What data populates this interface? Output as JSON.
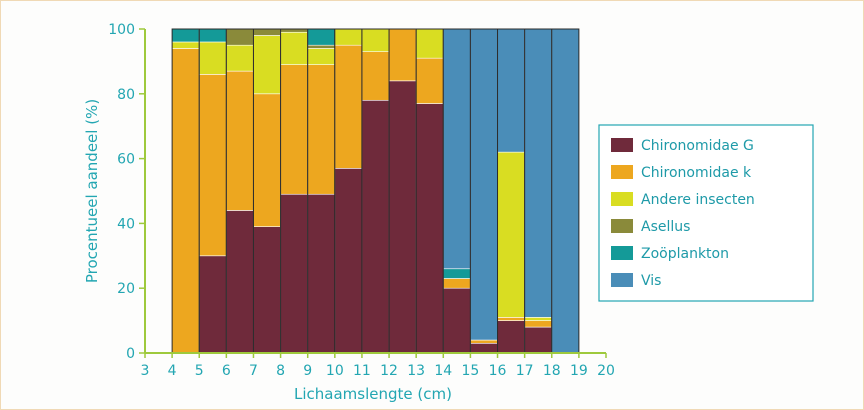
{
  "chart_data": {
    "type": "bar",
    "subtype": "stacked-100-percent",
    "xlabel": "Lichaamslengte (cm)",
    "ylabel": "Procentueel aandeel (%)",
    "xlim": [
      3,
      20
    ],
    "ylim": [
      0,
      100
    ],
    "x_ticks": [
      "3",
      "4",
      "5",
      "6",
      "7",
      "8",
      "9",
      "10",
      "11",
      "12",
      "13",
      "14",
      "15",
      "16",
      "17",
      "18",
      "19",
      "20"
    ],
    "y_ticks": [
      "0",
      "20",
      "40",
      "60",
      "80",
      "100"
    ],
    "grid": false,
    "legend_position": "right",
    "bins": [
      {
        "x0": 4,
        "x1": 5,
        "values": [
          0,
          94,
          2,
          0,
          4,
          0
        ]
      },
      {
        "x0": 5,
        "x1": 6,
        "values": [
          30,
          56,
          10,
          0,
          4,
          0
        ]
      },
      {
        "x0": 6,
        "x1": 7,
        "values": [
          44,
          43,
          8,
          5,
          0,
          0
        ]
      },
      {
        "x0": 7,
        "x1": 8,
        "values": [
          39,
          41,
          18,
          2,
          0,
          0
        ]
      },
      {
        "x0": 8,
        "x1": 9,
        "values": [
          49,
          40,
          10,
          1,
          0,
          0
        ]
      },
      {
        "x0": 9,
        "x1": 10,
        "values": [
          49,
          40,
          5,
          1,
          5,
          0
        ]
      },
      {
        "x0": 10,
        "x1": 11,
        "values": [
          57,
          38,
          5,
          0,
          0,
          0
        ]
      },
      {
        "x0": 11,
        "x1": 12,
        "values": [
          78,
          15,
          7,
          0,
          0,
          0
        ]
      },
      {
        "x0": 12,
        "x1": 13,
        "values": [
          84,
          16,
          0,
          0,
          0,
          0
        ]
      },
      {
        "x0": 13,
        "x1": 14,
        "values": [
          77,
          14,
          9,
          0,
          0,
          0
        ]
      },
      {
        "x0": 14,
        "x1": 15,
        "values": [
          20,
          3,
          0,
          0,
          3,
          74
        ]
      },
      {
        "x0": 15,
        "x1": 16,
        "values": [
          3,
          1,
          0,
          0,
          0,
          96
        ]
      },
      {
        "x0": 16,
        "x1": 17,
        "values": [
          10,
          1,
          51,
          0,
          0,
          38
        ]
      },
      {
        "x0": 17,
        "x1": 18,
        "values": [
          8,
          2,
          1,
          0,
          0,
          89
        ]
      },
      {
        "x0": 18,
        "x1": 19,
        "values": [
          0,
          0,
          0,
          0,
          0,
          100
        ]
      }
    ],
    "series": [
      {
        "name": "Chironomidae G",
        "color": "#6f2a3b"
      },
      {
        "name": "Chironomidae k",
        "color": "#eda71f"
      },
      {
        "name": "Andere insecten",
        "color": "#d9dd22"
      },
      {
        "name": "Asellus",
        "color": "#8a8a3a"
      },
      {
        "name": "Zoöplankton",
        "color": "#149a98"
      },
      {
        "name": "Vis",
        "color": "#4a8db8"
      }
    ],
    "axis_color": "#9ec93c",
    "text_color": "#23a6b2"
  }
}
